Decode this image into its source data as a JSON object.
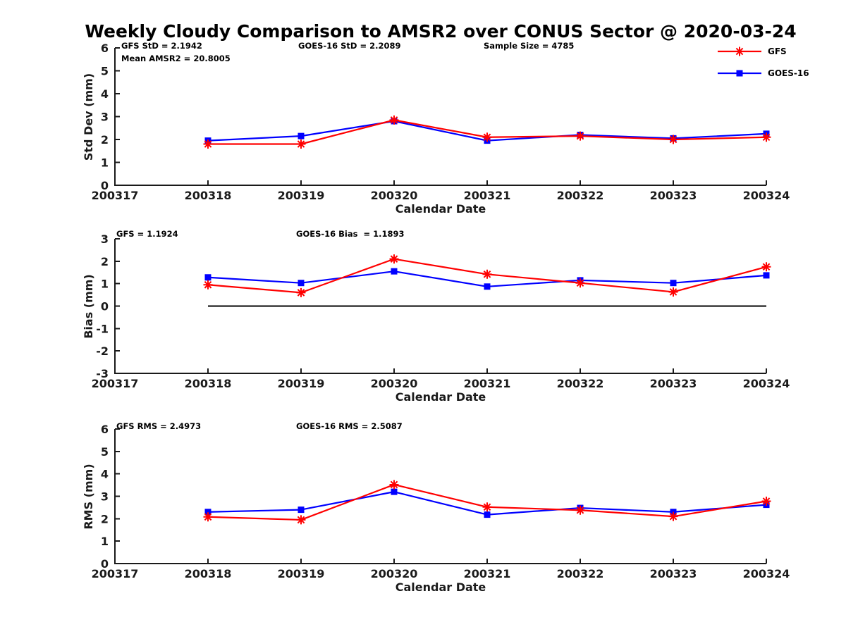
{
  "figure": {
    "title": "Weekly Cloudy Comparison to AMSR2 over CONUS Sector @ 2020-03-24"
  },
  "colors": {
    "gfs": "#ff0000",
    "goes16": "#0000ff",
    "axis": "#1a1a1a",
    "zero_line": "#000000",
    "background": "#ffffff"
  },
  "legend": {
    "items": [
      {
        "label": "GFS",
        "color": "#ff0000",
        "marker": "star"
      },
      {
        "label": "GOES-16",
        "color": "#0000ff",
        "marker": "square"
      }
    ]
  },
  "x_axis": {
    "label": "Calendar Date",
    "tick_labels": [
      "200317",
      "200318",
      "200319",
      "200320",
      "200321",
      "200322",
      "200323",
      "200324"
    ]
  },
  "chart_data": [
    {
      "type": "line",
      "name": "std-dev",
      "ylabel": "Std Dev (mm)",
      "xlabel": "Calendar Date",
      "ylim": [
        0,
        6
      ],
      "yticks": [
        0,
        1,
        2,
        3,
        4,
        5,
        6
      ],
      "categories": [
        "200318",
        "200319",
        "200320",
        "200321",
        "200322",
        "200323",
        "200324"
      ],
      "series": [
        {
          "name": "GFS",
          "color": "#ff0000",
          "marker": "star",
          "values": [
            1.8,
            1.8,
            2.85,
            2.1,
            2.15,
            2.0,
            2.1
          ]
        },
        {
          "name": "GOES-16",
          "color": "#0000ff",
          "marker": "square",
          "values": [
            1.95,
            2.15,
            2.8,
            1.95,
            2.2,
            2.05,
            2.25
          ]
        }
      ],
      "annotations": {
        "stat1": "GFS StD = 2.1942",
        "stat2": "Mean AMSR2 = 20.8005",
        "stat3": "GOES-16 StD = 2.2089",
        "stat4": "Sample Size = 4785"
      }
    },
    {
      "type": "line",
      "name": "bias",
      "ylabel": "Bias (mm)",
      "xlabel": "Calendar Date",
      "ylim": [
        -3,
        3
      ],
      "yticks": [
        -3,
        -2,
        -1,
        0,
        1,
        2,
        3
      ],
      "zero_line_y": 0,
      "categories": [
        "200318",
        "200319",
        "200320",
        "200321",
        "200322",
        "200323",
        "200324"
      ],
      "series": [
        {
          "name": "GFS",
          "color": "#ff0000",
          "marker": "star",
          "values": [
            0.95,
            0.6,
            2.1,
            1.42,
            1.03,
            0.63,
            1.75
          ]
        },
        {
          "name": "GOES-16",
          "color": "#0000ff",
          "marker": "square",
          "values": [
            1.28,
            1.03,
            1.55,
            0.87,
            1.15,
            1.03,
            1.37
          ]
        }
      ],
      "annotations": {
        "stat1": "GFS = 1.1924",
        "stat3": "GOES-16 Bias  = 1.1893"
      }
    },
    {
      "type": "line",
      "name": "rms",
      "ylabel": "RMS (mm)",
      "xlabel": "Calendar Date",
      "ylim": [
        0,
        6
      ],
      "yticks": [
        0,
        1,
        2,
        3,
        4,
        5,
        6
      ],
      "categories": [
        "200318",
        "200319",
        "200320",
        "200321",
        "200322",
        "200323",
        "200324"
      ],
      "series": [
        {
          "name": "GFS",
          "color": "#ff0000",
          "marker": "star",
          "values": [
            2.08,
            1.95,
            3.52,
            2.52,
            2.38,
            2.1,
            2.78
          ]
        },
        {
          "name": "GOES-16",
          "color": "#0000ff",
          "marker": "square",
          "values": [
            2.3,
            2.4,
            3.2,
            2.18,
            2.48,
            2.3,
            2.62
          ]
        }
      ],
      "annotations": {
        "stat1": "GFS RMS = 2.4973",
        "stat3": "GOES-16 RMS = 2.5087"
      }
    }
  ]
}
